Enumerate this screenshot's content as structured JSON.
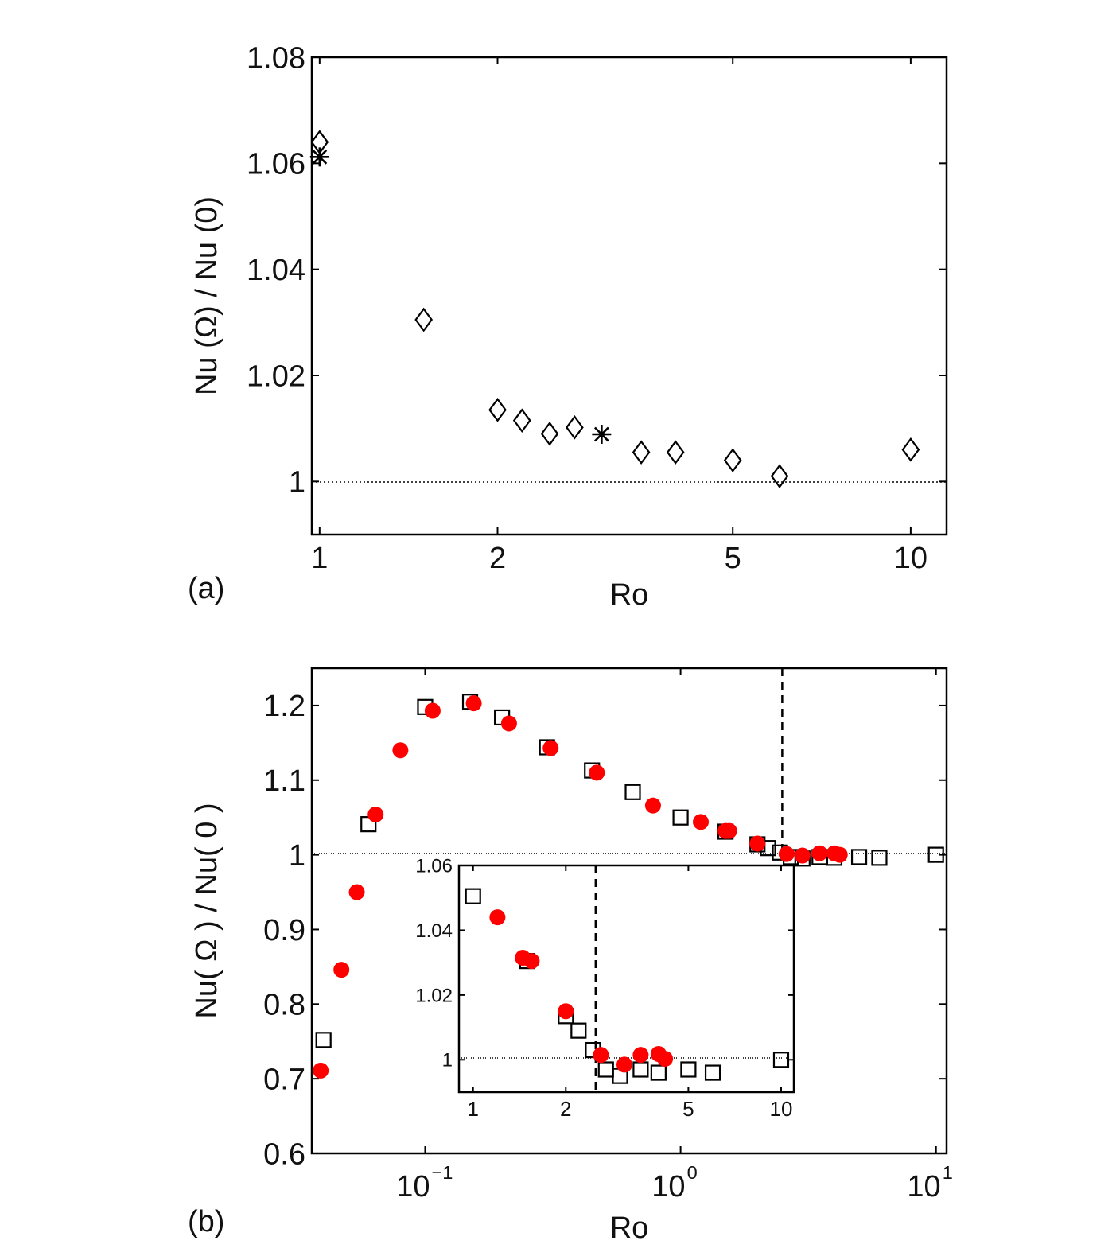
{
  "panel_a": {
    "panel_label": "(a)",
    "chart_data": {
      "type": "scatter",
      "xlabel": "Ro",
      "ylabel": "Nu (Ω) / Nu (0)",
      "xscale": "log",
      "xlim": [
        0.97,
        11.5
      ],
      "ylim": [
        0.99,
        1.08
      ],
      "xticks": [
        1,
        2,
        5,
        10
      ],
      "xtick_labels": [
        "1",
        "2",
        "5",
        "10"
      ],
      "yticks": [
        1,
        1.02,
        1.04,
        1.06,
        1.08
      ],
      "ytick_labels": [
        "1",
        "1.02",
        "1.04",
        "1.06",
        "1.08"
      ],
      "reference_line": {
        "y": 1,
        "style": "dotted"
      },
      "series": [
        {
          "marker": "diamond",
          "x": [
            1.0,
            1.5,
            2.0,
            2.2,
            2.45,
            2.7,
            3.5,
            4.0,
            5.0,
            6.0,
            10.0
          ],
          "y": [
            1.064,
            1.0305,
            1.0135,
            1.0115,
            1.009,
            1.0102,
            1.0055,
            1.0055,
            1.004,
            1.001,
            1.006
          ]
        },
        {
          "marker": "asterisk",
          "x": [
            1.0,
            3.0
          ],
          "y": [
            1.0612,
            1.0089
          ]
        }
      ]
    }
  },
  "panel_b": {
    "panel_label": "(b)",
    "chart_data": {
      "type": "scatter",
      "xlabel": "Ro",
      "ylabel": "Nu( Ω ) / Nu( 0 )",
      "xscale": "log",
      "xlim": [
        0.036,
        11
      ],
      "ylim": [
        0.6,
        1.25
      ],
      "xticks": [
        0.1,
        1,
        10
      ],
      "xtick_labels": [
        {
          "base": "10",
          "exp": "−1"
        },
        {
          "base": "10",
          "exp": "0"
        },
        {
          "base": "10",
          "exp": "1"
        }
      ],
      "yticks": [
        0.6,
        0.7,
        0.8,
        0.9,
        1.0,
        1.1,
        1.2
      ],
      "ytick_labels": [
        "0.6",
        "0.7",
        "0.8",
        "0.9",
        "1",
        "1.1",
        "1.2"
      ],
      "reference_line": {
        "y": 1,
        "style": "dotted"
      },
      "vertical_line": {
        "x": 2.5,
        "style": "dashed"
      },
      "series": [
        {
          "marker": "square-open",
          "color": "#000000",
          "x": [
            0.04,
            0.06,
            0.1,
            0.15,
            0.2,
            0.3,
            0.45,
            0.65,
            1.0,
            1.5,
            2.0,
            2.2,
            2.45,
            2.7,
            3.0,
            3.5,
            4.0,
            5.0,
            6.0,
            10.0
          ],
          "y": [
            0.752,
            1.041,
            1.198,
            1.205,
            1.184,
            1.144,
            1.113,
            1.084,
            1.05,
            1.031,
            1.014,
            1.009,
            1.003,
            0.997,
            0.995,
            0.997,
            0.996,
            0.997,
            0.996,
            1.0
          ]
        },
        {
          "marker": "circle-filled",
          "color": "#ff0000",
          "x": [
            0.039,
            0.047,
            0.054,
            0.064,
            0.08,
            0.107,
            0.155,
            0.213,
            0.31,
            0.47,
            0.78,
            1.2,
            1.5,
            1.55,
            2.0,
            2.6,
            3.0,
            3.5,
            4.0,
            4.2
          ],
          "y": [
            0.711,
            0.846,
            0.95,
            1.054,
            1.14,
            1.193,
            1.203,
            1.176,
            1.143,
            1.11,
            1.066,
            1.044,
            1.032,
            1.032,
            1.015,
            1.001,
            0.999,
            1.002,
            1.002,
            1.0
          ]
        }
      ]
    },
    "inset": {
      "chart_data": {
        "type": "scatter",
        "xscale": "log",
        "xlim": [
          0.9,
          11
        ],
        "ylim": [
          0.99,
          1.06
        ],
        "xticks": [
          1,
          2,
          5,
          10
        ],
        "xtick_labels": [
          "1",
          "2",
          "5",
          "10"
        ],
        "yticks": [
          1,
          1.02,
          1.04,
          1.06
        ],
        "ytick_labels": [
          "1",
          "1.02",
          "1.04",
          "1.06"
        ],
        "reference_line": {
          "y": 1,
          "style": "dotted"
        },
        "vertical_line": {
          "x": 2.5,
          "style": "dashed"
        },
        "series": [
          {
            "marker": "square-open",
            "color": "#000000",
            "x": [
              1.0,
              1.5,
              2.0,
              2.2,
              2.45,
              2.7,
              3.0,
              3.5,
              4.0,
              5.0,
              6.0,
              10.0
            ],
            "y": [
              1.0505,
              1.0305,
              1.0135,
              1.009,
              1.003,
              0.997,
              0.995,
              0.997,
              0.996,
              0.997,
              0.996,
              1.0
            ]
          },
          {
            "marker": "circle-filled",
            "color": "#ff0000",
            "x": [
              1.2,
              1.45,
              1.55,
              2.0,
              2.6,
              3.1,
              3.5,
              4.0,
              4.2
            ],
            "y": [
              1.044,
              1.0315,
              1.0305,
              1.015,
              1.0015,
              0.9985,
              1.0015,
              1.0018,
              1.0003
            ]
          }
        ]
      }
    }
  }
}
